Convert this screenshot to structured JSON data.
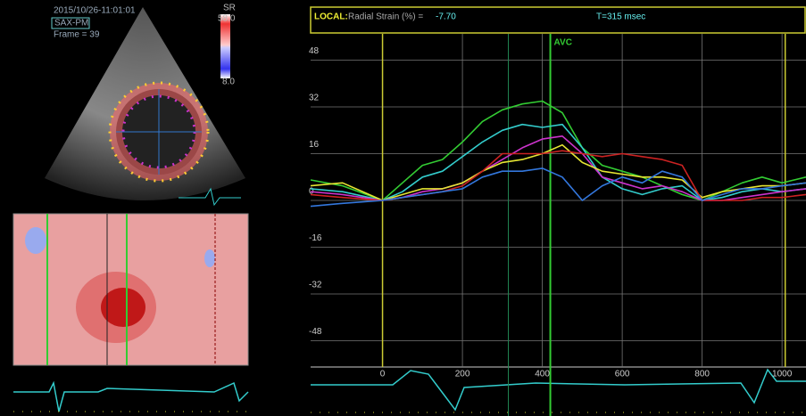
{
  "header": {
    "datetime": "2015/10/26-11:01:01",
    "view": "SAX-PM",
    "frame": "Frame = 39",
    "sr": "SR",
    "sr_max": "58.0",
    "sr_min": "8.0"
  },
  "status": {
    "local": "LOCAL:",
    "measure": "Radial Strain (%) =",
    "value": "-7.70",
    "time": "T=315 msec"
  },
  "chart_data": {
    "type": "line",
    "x": [
      -180,
      -100,
      0,
      50,
      100,
      150,
      200,
      250,
      300,
      350,
      400,
      450,
      500,
      550,
      600,
      650,
      700,
      750,
      800,
      850,
      900,
      950,
      1000,
      1060
    ],
    "series": [
      {
        "color": "#33cc33",
        "values": [
          7,
          5,
          0,
          6,
          12,
          14,
          20,
          27,
          31,
          33,
          34,
          30,
          18,
          12,
          10,
          8,
          5,
          2,
          0,
          3,
          6,
          8,
          6,
          8
        ]
      },
      {
        "color": "#33cccc",
        "values": [
          4,
          3,
          0,
          3,
          8,
          10,
          15,
          20,
          24,
          26,
          25,
          26,
          18,
          8,
          4,
          2,
          4,
          5,
          0,
          1,
          3,
          4,
          3,
          4
        ]
      },
      {
        "color": "#cc33cc",
        "values": [
          3,
          2,
          0,
          1,
          3,
          4,
          6,
          10,
          14,
          18,
          21,
          22,
          16,
          8,
          6,
          4,
          5,
          3,
          0,
          0,
          1,
          2,
          3,
          4
        ]
      },
      {
        "color": "#e6e633",
        "values": [
          5,
          6,
          0,
          2,
          4,
          4,
          6,
          10,
          13,
          14,
          16,
          19,
          13,
          10,
          9,
          8,
          8,
          7,
          1,
          3,
          4,
          5,
          5,
          6
        ]
      },
      {
        "color": "#cc2222",
        "values": [
          2,
          1,
          0,
          1,
          2,
          3,
          5,
          10,
          16,
          16,
          16,
          17,
          16,
          15,
          16,
          15,
          14,
          12,
          0,
          0,
          0,
          1,
          1,
          2
        ]
      },
      {
        "color": "#3377dd",
        "values": [
          -2,
          -1,
          0,
          1,
          2,
          3,
          4,
          8,
          10,
          10,
          11,
          8,
          0,
          5,
          8,
          6,
          10,
          8,
          0,
          2,
          4,
          4,
          5,
          6
        ]
      }
    ],
    "xlim": [
      -180,
      1060
    ],
    "xticks": [
      0,
      200,
      400,
      600,
      800,
      1000
    ],
    "ylim": [
      -57,
      57
    ],
    "yticks": [
      48,
      32,
      16,
      0,
      -16,
      -32,
      -48
    ],
    "grid": true,
    "markers": [
      0,
      1008
    ],
    "cursor_x": 315,
    "annotation": {
      "x": 420,
      "text": "AVC"
    }
  }
}
